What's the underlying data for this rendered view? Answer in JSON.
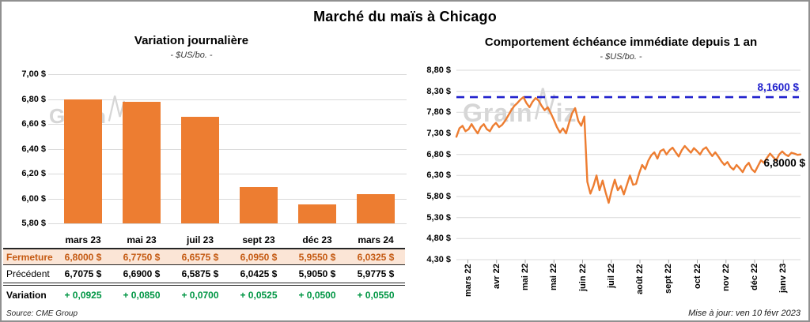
{
  "page_title": "Marché du maïs à Chicago",
  "footer": {
    "source": "Source: CME Group",
    "updated": "Mise à jour: ven 10 févr 2023"
  },
  "watermark": {
    "prefix": "Grain",
    "suffix": "iz"
  },
  "colors": {
    "orange": "#ED7D31",
    "dark_orange": "#C45911",
    "peach": "#FBE5D6",
    "green": "#009644",
    "blue": "#2020CD",
    "grid": "#D9D9D9",
    "axis": "#A6A6A6"
  },
  "table": {
    "corner": "",
    "col_headers": [
      "mars 23",
      "mai 23",
      "juil 23",
      "sept 23",
      "déc 23",
      "mars 24"
    ],
    "rows": [
      {
        "id": "fermeture",
        "label": "Fermeture",
        "cells": [
          "6,8000 $",
          "6,7750 $",
          "6,6575 $",
          "6,0950 $",
          "5,9550 $",
          "6,0325 $"
        ]
      },
      {
        "id": "precedent",
        "label": "Précédent",
        "cells": [
          "6,7075 $",
          "6,6900 $",
          "6,5875 $",
          "6,0425 $",
          "5,9050 $",
          "5,9775 $"
        ]
      },
      {
        "id": "variation",
        "label": "Variation",
        "cells": [
          "+ 0,0925",
          "+ 0,0850",
          "+ 0,0700",
          "+ 0,0525",
          "+ 0,0500",
          "+ 0,0550"
        ]
      }
    ]
  },
  "chart_data": [
    {
      "type": "bar",
      "title": "Variation journalière",
      "subtitle": "- $US/bo. -",
      "categories": [
        "mars 23",
        "mai 23",
        "juil 23",
        "sept 23",
        "déc 23",
        "mars 24"
      ],
      "values": [
        6.8,
        6.775,
        6.6575,
        6.095,
        5.955,
        6.0325
      ],
      "ylim": [
        5.8,
        7.0
      ],
      "ytick_values": [
        7.0,
        6.8,
        6.6,
        6.4,
        6.2,
        6.0,
        5.8
      ],
      "ytick_labels": [
        "7,00 $",
        "6,80 $",
        "6,60 $",
        "6,40 $",
        "6,20 $",
        "6,00 $",
        "5,80 $"
      ],
      "bar_color": "#ED7D31",
      "grid": true,
      "legend": "none"
    },
    {
      "type": "line",
      "title": "Comportement échéance immédiate depuis 1 an",
      "subtitle": "- $US/bo. -",
      "x_labels": [
        "mars 22",
        "avr 22",
        "mai 22",
        "mai 22",
        "juin 22",
        "juil 22",
        "août 22",
        "sept 22",
        "oct 22",
        "nov 22",
        "déc 22",
        "janv 23"
      ],
      "ylim": [
        4.3,
        8.8
      ],
      "ytick_values": [
        8.8,
        8.3,
        7.8,
        7.3,
        6.8,
        6.3,
        5.8,
        5.3,
        4.8,
        4.3
      ],
      "ytick_labels": [
        "8,80 $",
        "8,30 $",
        "7,80 $",
        "7,30 $",
        "6,80 $",
        "6,30 $",
        "5,80 $",
        "5,30 $",
        "4,80 $",
        "4,30 $"
      ],
      "ref_line": {
        "value": 8.16,
        "label": "8,1600 $",
        "style": "dashed",
        "color": "#2020CD"
      },
      "end_label": {
        "value": 6.8,
        "label": "6,8000 $"
      },
      "line_color": "#ED7D31",
      "grid": true,
      "legend": "none",
      "values": [
        7.22,
        7.42,
        7.48,
        7.35,
        7.4,
        7.52,
        7.4,
        7.3,
        7.45,
        7.52,
        7.4,
        7.35,
        7.48,
        7.55,
        7.45,
        7.5,
        7.6,
        7.72,
        7.85,
        7.95,
        8.02,
        8.1,
        8.16,
        8.02,
        7.92,
        8.05,
        8.14,
        8.08,
        7.95,
        7.85,
        7.92,
        7.78,
        7.62,
        7.45,
        7.32,
        7.42,
        7.3,
        7.55,
        7.78,
        7.9,
        7.6,
        7.48,
        7.7,
        6.15,
        5.87,
        6.05,
        6.3,
        5.95,
        6.18,
        5.9,
        5.65,
        5.95,
        6.2,
        5.95,
        6.05,
        5.85,
        6.08,
        6.3,
        6.08,
        6.1,
        6.35,
        6.55,
        6.45,
        6.65,
        6.78,
        6.85,
        6.7,
        6.88,
        6.92,
        6.8,
        6.9,
        6.96,
        6.85,
        6.75,
        6.9,
        7.0,
        6.92,
        6.84,
        6.95,
        6.88,
        6.8,
        6.92,
        6.97,
        6.86,
        6.76,
        6.85,
        6.75,
        6.64,
        6.55,
        6.62,
        6.5,
        6.44,
        6.55,
        6.47,
        6.38,
        6.52,
        6.6,
        6.45,
        6.38,
        6.52,
        6.66,
        6.6,
        6.72,
        6.82,
        6.74,
        6.66,
        6.8,
        6.87,
        6.8,
        6.76,
        6.84,
        6.82,
        6.79,
        6.8
      ]
    }
  ]
}
